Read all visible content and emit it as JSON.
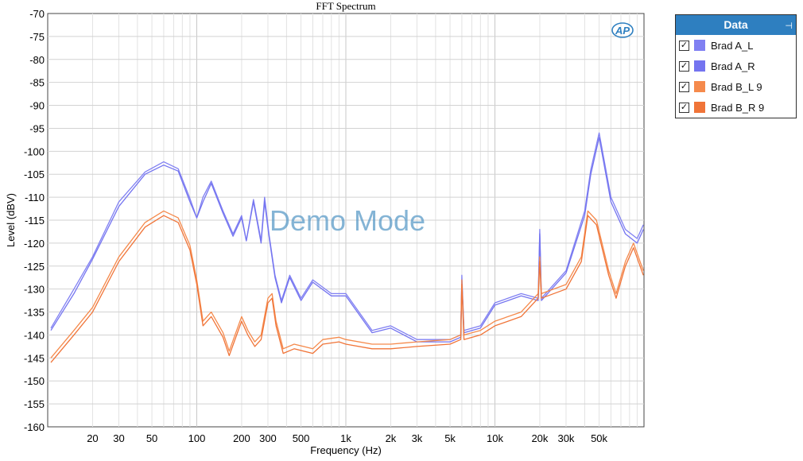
{
  "chart_data": {
    "type": "line",
    "title": "FFT Spectrum",
    "xlabel": "Frequency (Hz)",
    "ylabel": "Level (dBV)",
    "x_scale": "log",
    "xlim": [
      10,
      100000
    ],
    "ylim": [
      -160,
      -70
    ],
    "grid": true,
    "x_ticks": [
      {
        "value": 20,
        "label": "20"
      },
      {
        "value": 30,
        "label": "30"
      },
      {
        "value": 50,
        "label": "50"
      },
      {
        "value": 100,
        "label": "100"
      },
      {
        "value": 200,
        "label": "200"
      },
      {
        "value": 300,
        "label": "300"
      },
      {
        "value": 500,
        "label": "500"
      },
      {
        "value": 1000,
        "label": "1k"
      },
      {
        "value": 2000,
        "label": "2k"
      },
      {
        "value": 3000,
        "label": "3k"
      },
      {
        "value": 5000,
        "label": "5k"
      },
      {
        "value": 10000,
        "label": "10k"
      },
      {
        "value": 20000,
        "label": "20k"
      },
      {
        "value": 30000,
        "label": "30k"
      },
      {
        "value": 50000,
        "label": "50k"
      }
    ],
    "y_ticks": [
      -70,
      -75,
      -80,
      -85,
      -90,
      -95,
      -100,
      -105,
      -110,
      -115,
      -120,
      -125,
      -130,
      -135,
      -140,
      -145,
      -150,
      -155,
      -160
    ],
    "watermark": "Demo Mode",
    "legend": {
      "title": "Data",
      "position": "right"
    },
    "series": [
      {
        "name": "Brad A_L",
        "color": "#8080f2",
        "checked": true,
        "points": [
          [
            10.5,
            -138.5
          ],
          [
            15,
            -130
          ],
          [
            20,
            -123
          ],
          [
            30,
            -111
          ],
          [
            45,
            -104.5
          ],
          [
            60,
            -102.3
          ],
          [
            75,
            -103.8
          ],
          [
            90,
            -110.3
          ],
          [
            100,
            -114.5
          ],
          [
            110,
            -110
          ],
          [
            125,
            -106.5
          ],
          [
            150,
            -113
          ],
          [
            175,
            -118
          ],
          [
            200,
            -114
          ],
          [
            215,
            -119.5
          ],
          [
            240,
            -110.5
          ],
          [
            270,
            -119.5
          ],
          [
            285,
            -110
          ],
          [
            305,
            -118
          ],
          [
            335,
            -127
          ],
          [
            370,
            -132.5
          ],
          [
            420,
            -127
          ],
          [
            500,
            -132
          ],
          [
            600,
            -128
          ],
          [
            800,
            -131
          ],
          [
            1000,
            -131
          ],
          [
            1500,
            -139
          ],
          [
            2000,
            -138
          ],
          [
            3000,
            -141
          ],
          [
            5000,
            -141
          ],
          [
            5900,
            -140
          ],
          [
            6000,
            -127
          ],
          [
            6200,
            -139
          ],
          [
            8000,
            -138
          ],
          [
            10000,
            -133
          ],
          [
            15000,
            -131
          ],
          [
            19500,
            -132
          ],
          [
            20000,
            -117
          ],
          [
            20500,
            -132
          ],
          [
            30000,
            -126
          ],
          [
            40000,
            -113
          ],
          [
            44000,
            -104
          ],
          [
            50000,
            -96
          ],
          [
            60000,
            -110
          ],
          [
            75000,
            -117
          ],
          [
            90000,
            -119
          ],
          [
            99000,
            -116
          ]
        ]
      },
      {
        "name": "Brad A_R",
        "color": "#7474f0",
        "checked": true,
        "points": [
          [
            10.5,
            -139
          ],
          [
            15,
            -131
          ],
          [
            20,
            -123.5
          ],
          [
            30,
            -112
          ],
          [
            45,
            -105
          ],
          [
            60,
            -103
          ],
          [
            75,
            -104.3
          ],
          [
            90,
            -111
          ],
          [
            100,
            -114.5
          ],
          [
            110,
            -111
          ],
          [
            125,
            -107
          ],
          [
            150,
            -113.5
          ],
          [
            175,
            -118.5
          ],
          [
            200,
            -114.5
          ],
          [
            215,
            -119.5
          ],
          [
            240,
            -111
          ],
          [
            270,
            -120
          ],
          [
            285,
            -111
          ],
          [
            305,
            -118.5
          ],
          [
            335,
            -127.5
          ],
          [
            370,
            -133
          ],
          [
            420,
            -127.5
          ],
          [
            500,
            -132.5
          ],
          [
            600,
            -128.5
          ],
          [
            800,
            -131.5
          ],
          [
            1000,
            -131.5
          ],
          [
            1500,
            -139.5
          ],
          [
            2000,
            -138.5
          ],
          [
            3000,
            -141.5
          ],
          [
            5000,
            -141.5
          ],
          [
            5900,
            -140.5
          ],
          [
            6000,
            -128
          ],
          [
            6200,
            -139.5
          ],
          [
            8000,
            -138.5
          ],
          [
            10000,
            -133.5
          ],
          [
            15000,
            -131.5
          ],
          [
            19500,
            -132.5
          ],
          [
            20000,
            -118
          ],
          [
            20500,
            -132.5
          ],
          [
            30000,
            -126.5
          ],
          [
            40000,
            -114
          ],
          [
            44000,
            -105
          ],
          [
            50000,
            -97
          ],
          [
            60000,
            -111
          ],
          [
            75000,
            -118
          ],
          [
            90000,
            -120
          ],
          [
            99000,
            -117
          ]
        ]
      },
      {
        "name": "Brad B_L  9",
        "color": "#f58a4c",
        "checked": true,
        "points": [
          [
            10.5,
            -145
          ],
          [
            15,
            -139
          ],
          [
            20,
            -134
          ],
          [
            30,
            -123
          ],
          [
            45,
            -115.5
          ],
          [
            60,
            -113
          ],
          [
            75,
            -114.5
          ],
          [
            90,
            -120.5
          ],
          [
            100,
            -128
          ],
          [
            110,
            -137
          ],
          [
            125,
            -135
          ],
          [
            150,
            -139.5
          ],
          [
            165,
            -143.5
          ],
          [
            200,
            -136
          ],
          [
            220,
            -139
          ],
          [
            245,
            -141.5
          ],
          [
            270,
            -140
          ],
          [
            300,
            -132
          ],
          [
            320,
            -131
          ],
          [
            340,
            -137
          ],
          [
            380,
            -143
          ],
          [
            450,
            -142
          ],
          [
            600,
            -143
          ],
          [
            700,
            -141
          ],
          [
            900,
            -140.5
          ],
          [
            1000,
            -141
          ],
          [
            1500,
            -142
          ],
          [
            2000,
            -142
          ],
          [
            3000,
            -141.5
          ],
          [
            5000,
            -141
          ],
          [
            5900,
            -140
          ],
          [
            6000,
            -128
          ],
          [
            6200,
            -140
          ],
          [
            8000,
            -139
          ],
          [
            10000,
            -137
          ],
          [
            15000,
            -135
          ],
          [
            19500,
            -131
          ],
          [
            20000,
            -123
          ],
          [
            20500,
            -131
          ],
          [
            30000,
            -129
          ],
          [
            38000,
            -123
          ],
          [
            42000,
            -113
          ],
          [
            48000,
            -115
          ],
          [
            58000,
            -126
          ],
          [
            65000,
            -131
          ],
          [
            75000,
            -124
          ],
          [
            85000,
            -120
          ],
          [
            99000,
            -126
          ]
        ]
      },
      {
        "name": "Brad B_R  9",
        "color": "#f07438",
        "checked": true,
        "points": [
          [
            10.5,
            -146
          ],
          [
            15,
            -140
          ],
          [
            20,
            -135
          ],
          [
            30,
            -124
          ],
          [
            45,
            -116.5
          ],
          [
            60,
            -114
          ],
          [
            75,
            -115.5
          ],
          [
            90,
            -121.5
          ],
          [
            100,
            -129
          ],
          [
            110,
            -138
          ],
          [
            125,
            -136
          ],
          [
            150,
            -140.5
          ],
          [
            165,
            -144.5
          ],
          [
            200,
            -137
          ],
          [
            220,
            -140
          ],
          [
            245,
            -142.5
          ],
          [
            270,
            -141
          ],
          [
            300,
            -133
          ],
          [
            320,
            -132
          ],
          [
            340,
            -138
          ],
          [
            380,
            -144
          ],
          [
            450,
            -143
          ],
          [
            600,
            -144
          ],
          [
            700,
            -142
          ],
          [
            900,
            -141.5
          ],
          [
            1000,
            -142
          ],
          [
            1500,
            -143
          ],
          [
            2000,
            -143
          ],
          [
            3000,
            -142.5
          ],
          [
            5000,
            -142
          ],
          [
            5900,
            -141
          ],
          [
            6000,
            -129
          ],
          [
            6200,
            -141
          ],
          [
            8000,
            -140
          ],
          [
            10000,
            -138
          ],
          [
            15000,
            -136
          ],
          [
            19500,
            -132
          ],
          [
            20000,
            -124
          ],
          [
            20500,
            -132
          ],
          [
            30000,
            -130
          ],
          [
            38000,
            -124
          ],
          [
            42000,
            -114
          ],
          [
            48000,
            -116
          ],
          [
            58000,
            -127
          ],
          [
            65000,
            -132
          ],
          [
            75000,
            -125
          ],
          [
            85000,
            -121
          ],
          [
            99000,
            -127
          ]
        ]
      }
    ]
  },
  "legend": {
    "title": "Data",
    "pin_icon": "pin-icon",
    "items": [
      {
        "label": "Brad A_L",
        "color": "#8080f2"
      },
      {
        "label": "Brad A_R",
        "color": "#7474f0"
      },
      {
        "label": "Brad B_L  9",
        "color": "#f58a4c"
      },
      {
        "label": "Brad B_R  9",
        "color": "#f07438"
      }
    ]
  },
  "logo": {
    "text": "AP"
  }
}
